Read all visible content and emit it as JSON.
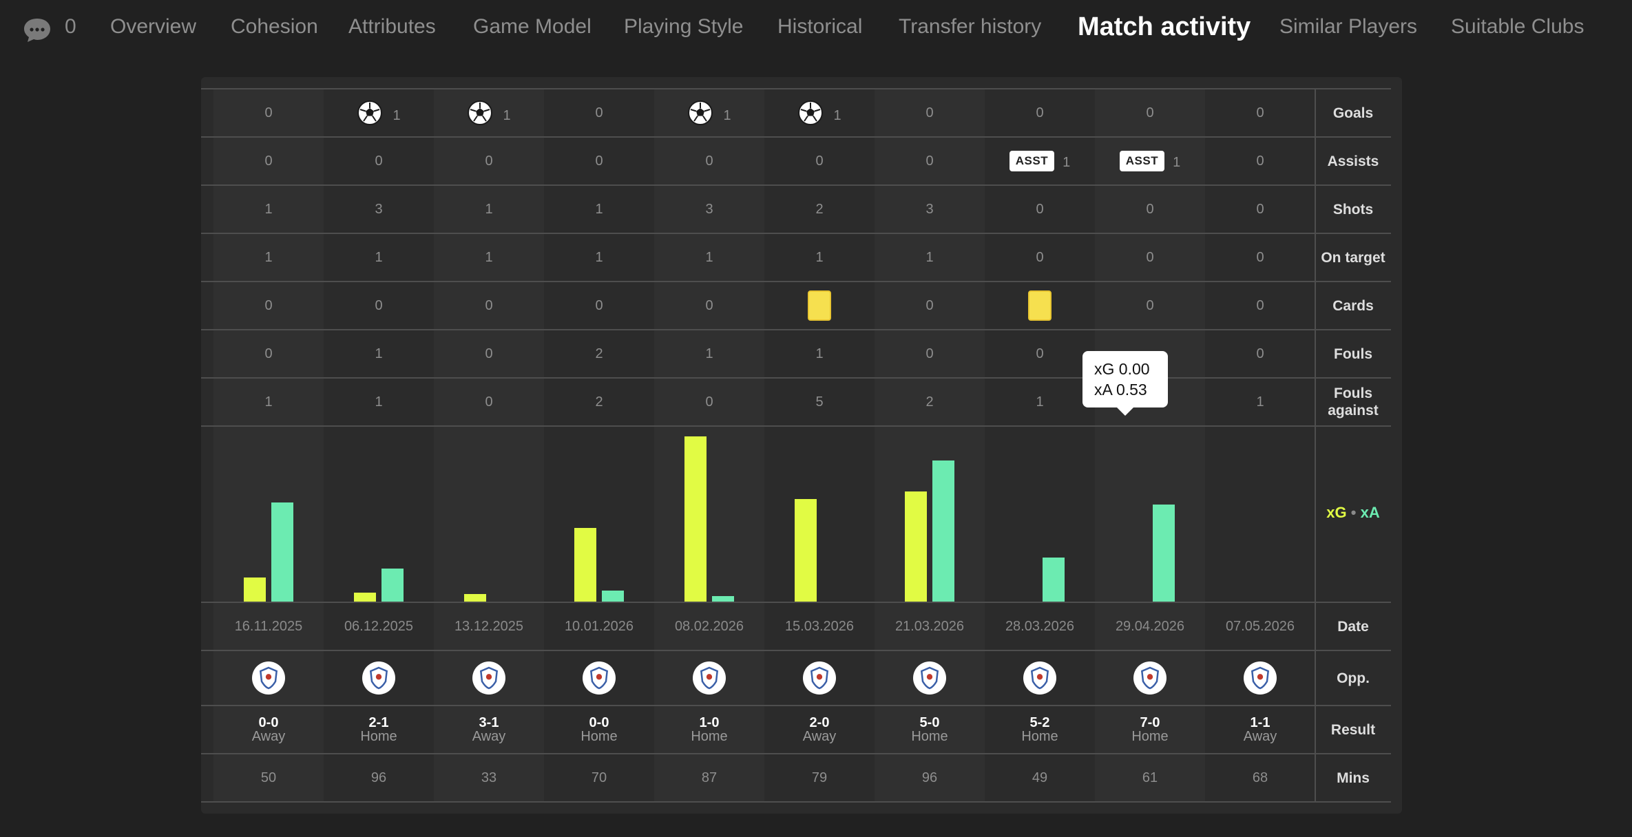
{
  "nav": {
    "comment_count": "0",
    "tabs": [
      "Overview",
      "Cohesion",
      "Attributes",
      "Game Model",
      "Playing Style",
      "Historical",
      "Transfer history",
      "Match activity",
      "Similar Players",
      "Suitable Clubs"
    ],
    "active_tab": "Match activity"
  },
  "row_labels": {
    "goals": "Goals",
    "assists": "Assists",
    "shots": "Shots",
    "on_target": "On target",
    "cards": "Cards",
    "fouls": "Fouls",
    "fouls_against": "Fouls against",
    "date": "Date",
    "opp": "Opp.",
    "result": "Result",
    "mins": "Mins"
  },
  "legend": {
    "xg": "xG",
    "dot": "•",
    "xa": "xA"
  },
  "assist_badge": "ASST",
  "tooltip": {
    "line1": "xG 0.00",
    "line2": "xA 0.53"
  },
  "colors": {
    "xg": "#e1fb44",
    "xa": "#6cebb1",
    "yellow_card": "#f6e04f"
  },
  "matches": [
    {
      "goals": "0",
      "assists": "0",
      "shots": "1",
      "on_target": "1",
      "cards": "0",
      "fouls": "0",
      "fouls_against": "1",
      "xg": 0.13,
      "xa": 0.54,
      "date": "16.11.2025",
      "opp_icon": "tottenham-crest-icon",
      "score": "0-0",
      "venue": "Away",
      "mins": "50"
    },
    {
      "goals": "1",
      "assists": "0",
      "shots": "3",
      "on_target": "1",
      "cards": "0",
      "fouls": "1",
      "fouls_against": "1",
      "xg": 0.05,
      "xa": 0.18,
      "date": "06.12.2025",
      "opp_icon": "liverpool-crest-icon",
      "score": "2-1",
      "venue": "Home",
      "mins": "96"
    },
    {
      "goals": "1",
      "assists": "0",
      "shots": "1",
      "on_target": "1",
      "cards": "0",
      "fouls": "0",
      "fouls_against": "0",
      "xg": 0.04,
      "xa": 0,
      "date": "13.12.2025",
      "opp_icon": "everton-crest-icon",
      "score": "3-1",
      "venue": "Away",
      "mins": "33"
    },
    {
      "goals": "0",
      "assists": "0",
      "shots": "1",
      "on_target": "1",
      "cards": "0",
      "fouls": "2",
      "fouls_against": "2",
      "xg": 0.4,
      "xa": 0.06,
      "date": "10.01.2026",
      "opp_icon": "man-united-crest-icon",
      "score": "0-0",
      "venue": "Home",
      "mins": "70"
    },
    {
      "goals": "1",
      "assists": "0",
      "shots": "3",
      "on_target": "1",
      "cards": "0",
      "fouls": "1",
      "fouls_against": "0",
      "xg": 0.9,
      "xa": 0.03,
      "date": "08.02.2026",
      "opp_icon": "man-city-crest-icon",
      "score": "1-0",
      "venue": "Home",
      "mins": "87"
    },
    {
      "goals": "1",
      "assists": "0",
      "shots": "2",
      "on_target": "1",
      "cards": "yellow",
      "fouls": "1",
      "fouls_against": "5",
      "xg": 0.56,
      "xa": 0,
      "date": "15.03.2026",
      "opp_icon": "crest-icon",
      "score": "2-0",
      "venue": "Away",
      "mins": "79"
    },
    {
      "goals": "0",
      "assists": "0",
      "shots": "3",
      "on_target": "1",
      "cards": "0",
      "fouls": "0",
      "fouls_against": "2",
      "xg": 0.6,
      "xa": 0.77,
      "date": "21.03.2026",
      "opp_icon": "west-ham-women-crest-icon",
      "score": "5-0",
      "venue": "Home",
      "mins": "96"
    },
    {
      "goals": "0",
      "assists": "1",
      "shots": "0",
      "on_target": "0",
      "cards": "yellow",
      "fouls": "0",
      "fouls_against": "1",
      "xg": 0,
      "xa": 0.24,
      "date": "28.03.2026",
      "opp_icon": "tottenham-crest-icon",
      "score": "5-2",
      "venue": "Home",
      "mins": "49"
    },
    {
      "goals": "0",
      "assists": "1",
      "shots": "0",
      "on_target": "0",
      "cards": "0",
      "fouls": "",
      "fouls_against": "",
      "xg": 0.0,
      "xa": 0.53,
      "date": "29.04.2026",
      "opp_icon": "leicester-crest-icon",
      "score": "7-0",
      "venue": "Home",
      "mins": "61"
    },
    {
      "goals": "0",
      "assists": "0",
      "shots": "0",
      "on_target": "0",
      "cards": "0",
      "fouls": "0",
      "fouls_against": "1",
      "xg": 0,
      "xa": 0,
      "date": "07.05.2026",
      "opp_icon": "brighton-crest-icon",
      "score": "1-1",
      "venue": "Away",
      "mins": "68"
    }
  ]
}
